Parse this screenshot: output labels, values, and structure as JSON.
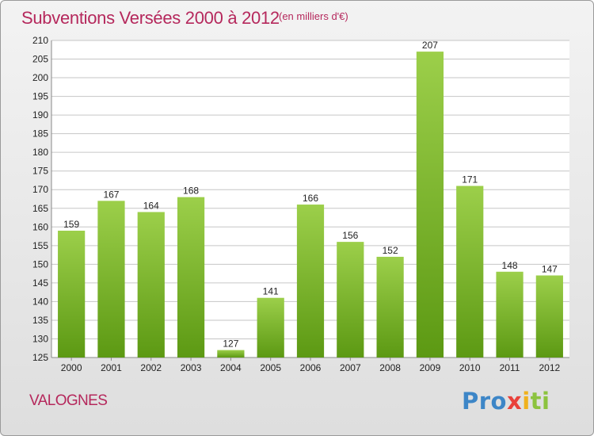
{
  "title": "Subventions Versées 2000 à 2012",
  "subtitle": "(en milliers d'€)",
  "commune": "VALOGNES",
  "logo": {
    "p1": "Pro",
    "p2": "x",
    "p3": "i",
    "p4": "ti"
  },
  "colors": {
    "title": "#b5285c",
    "bar_light": "#9ccf4a",
    "bar_dark": "#5c9913",
    "grid": "#c6c6c6",
    "plot_bg": "#ffffff"
  },
  "chart_data": {
    "type": "bar",
    "title": "Subventions Versées 2000 à 2012",
    "subtitle": "(en milliers d'€)",
    "categories": [
      "2000",
      "2001",
      "2002",
      "2003",
      "2004",
      "2005",
      "2006",
      "2007",
      "2008",
      "2009",
      "2010",
      "2011",
      "2012"
    ],
    "values": [
      159,
      167,
      164,
      168,
      127,
      141,
      166,
      156,
      152,
      207,
      171,
      148,
      147
    ],
    "ylim": [
      125,
      210
    ],
    "ytick_step": 5,
    "grid": true,
    "legend": "none",
    "xlabel": "",
    "ylabel": ""
  }
}
